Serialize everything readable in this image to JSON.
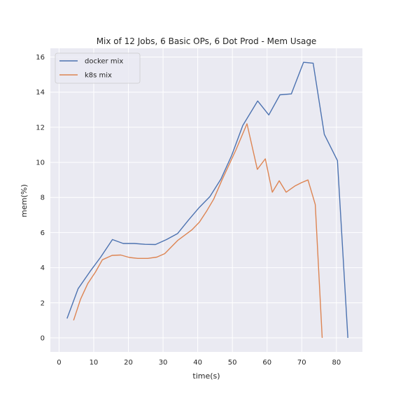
{
  "chart_data": {
    "type": "line",
    "title": "Mix of 12 Jobs, 6 Basic OPs, 6 Dot Prod - Mem Usage",
    "xlabel": "time(s)",
    "ylabel": "mem(%)",
    "xlim": [
      -2.5,
      87.5
    ],
    "ylim": [
      -0.8,
      16.5
    ],
    "xticks": [
      0,
      10,
      20,
      30,
      40,
      50,
      60,
      70,
      80
    ],
    "yticks": [
      0,
      2,
      4,
      6,
      8,
      10,
      12,
      14,
      16
    ],
    "grid": true,
    "legend_position": "top-left",
    "colors": {
      "background": "#eaeaf2",
      "grid": "#ffffff",
      "docker": "#4c72b0",
      "k8s": "#dd8452"
    },
    "series": [
      {
        "name": "docker mix",
        "color": "#4c72b0",
        "x": [
          2.3,
          5.5,
          9,
          12,
          15.4,
          18.5,
          21.7,
          24.8,
          27.8,
          31,
          34.2,
          37.3,
          40.3,
          43.5,
          46.7,
          49.8,
          53,
          57.3,
          60.5,
          63.7,
          67,
          70.5,
          73.3,
          76.5,
          80.3,
          83.3
        ],
        "y": [
          1.1,
          2.8,
          3.8,
          4.6,
          5.6,
          5.38,
          5.38,
          5.33,
          5.32,
          5.6,
          5.95,
          6.7,
          7.4,
          8.05,
          9.05,
          10.4,
          12.1,
          13.5,
          12.7,
          13.85,
          13.9,
          15.7,
          15.65,
          11.6,
          10.1,
          0
        ]
      },
      {
        "name": "k8s mix",
        "color": "#dd8452",
        "x": [
          4.2,
          6.2,
          8.3,
          10.5,
          12.5,
          15.3,
          17.8,
          20.3,
          22.7,
          25.6,
          28.2,
          30.5,
          34.2,
          38.3,
          40.5,
          42.5,
          44.6,
          47,
          51,
          54.2,
          57.2,
          59.5,
          61.5,
          63.5,
          65.5,
          68,
          70,
          71.8,
          73.9,
          75.9
        ],
        "y": [
          1.0,
          2.2,
          3.1,
          3.75,
          4.45,
          4.7,
          4.72,
          4.58,
          4.53,
          4.53,
          4.6,
          4.8,
          5.55,
          6.15,
          6.6,
          7.2,
          7.9,
          9.0,
          10.7,
          12.2,
          9.6,
          10.2,
          8.3,
          8.95,
          8.3,
          8.65,
          8.85,
          9.0,
          7.6,
          0.0
        ]
      }
    ]
  }
}
